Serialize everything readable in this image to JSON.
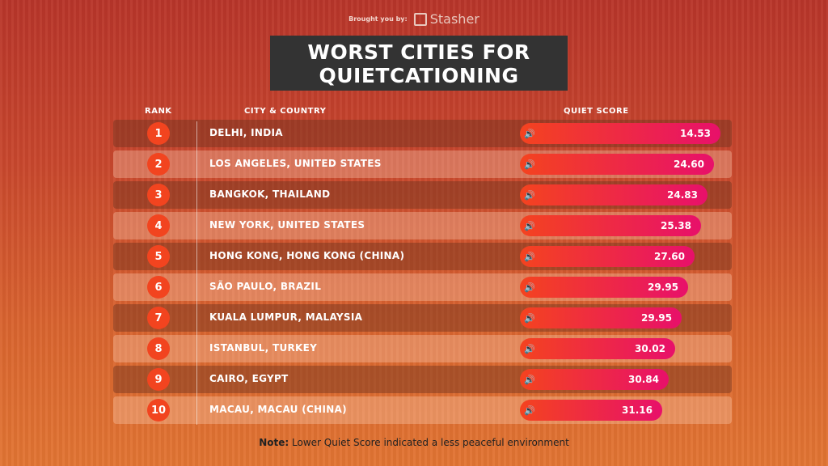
{
  "brought_label": "Brought you by:",
  "brand": "Stasher",
  "title_line1": "WORST CITIES FOR",
  "title_line2": "QUIETCATIONING",
  "headers": {
    "rank": "RANK",
    "city": "CITY & COUNTRY",
    "score": "QUIET SCORE"
  },
  "note_label": "Note:",
  "note_text": "Lower Quiet Score indicated a less peaceful environment",
  "chart_data": {
    "type": "bar",
    "title": "WORST CITIES FOR QUIETCATIONING",
    "ylabel": "QUIET SCORE",
    "categories": [
      "DELHI, INDIA",
      "LOS ANGELES, UNITED STATES",
      "BANGKOK, THAILAND",
      "NEW YORK, UNITED STATES",
      "HONG KONG, HONG KONG (CHINA)",
      "SÃO PAULO, BRAZIL",
      "KUALA LUMPUR, MALAYSIA",
      "ISTANBUL, TURKEY",
      "CAIRO, EGYPT",
      "MACAU, MACAU (CHINA)"
    ],
    "ranks": [
      "1",
      "2",
      "3",
      "4",
      "5",
      "6",
      "7",
      "8",
      "9",
      "10"
    ],
    "values": [
      "14.53",
      "24.60",
      "24.83",
      "25.38",
      "27.60",
      "29.95",
      "29.95",
      "30.02",
      "30.84",
      "31.16"
    ]
  }
}
